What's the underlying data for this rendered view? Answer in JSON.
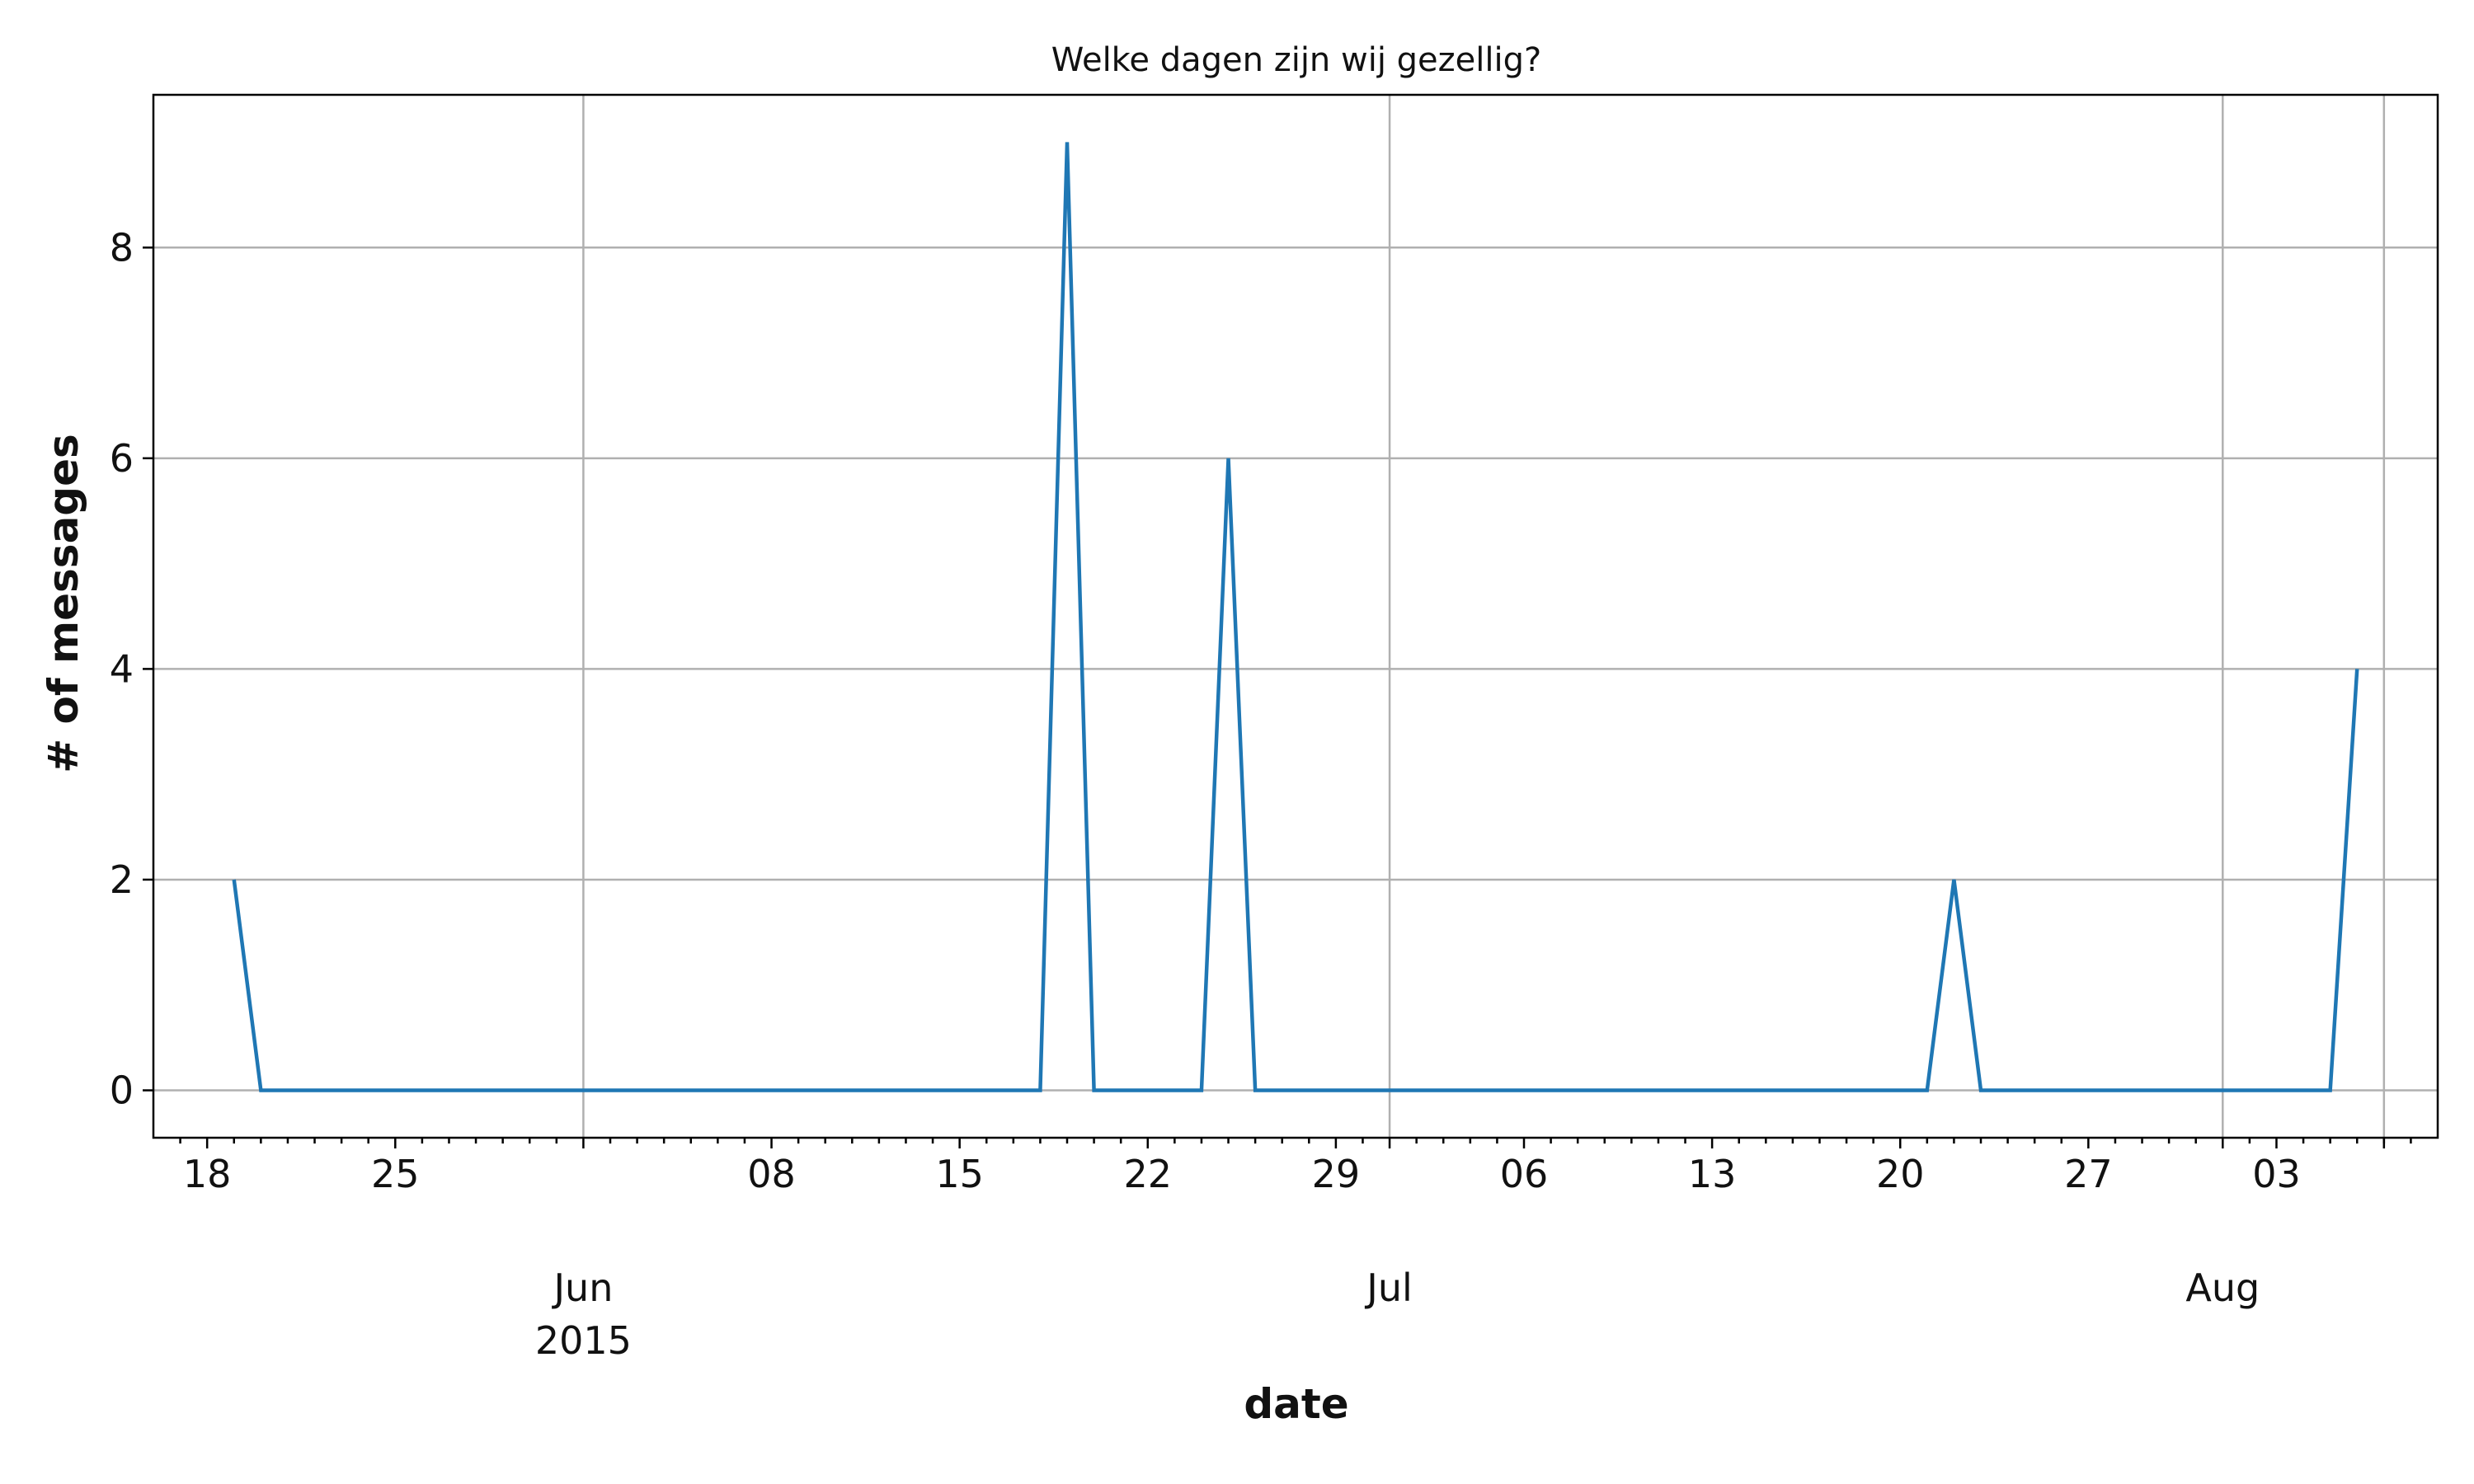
{
  "chart_data": {
    "type": "line",
    "title": "Welke dagen zijn wij gezellig?",
    "xlabel": "date",
    "ylabel": "# of messages",
    "x": [
      "2015-05-19",
      "2015-05-20",
      "2015-05-21",
      "2015-05-22",
      "2015-05-23",
      "2015-05-24",
      "2015-05-25",
      "2015-05-26",
      "2015-05-27",
      "2015-05-28",
      "2015-05-29",
      "2015-05-30",
      "2015-05-31",
      "2015-06-01",
      "2015-06-02",
      "2015-06-03",
      "2015-06-04",
      "2015-06-05",
      "2015-06-06",
      "2015-06-07",
      "2015-06-08",
      "2015-06-09",
      "2015-06-10",
      "2015-06-11",
      "2015-06-12",
      "2015-06-13",
      "2015-06-14",
      "2015-06-15",
      "2015-06-16",
      "2015-06-17",
      "2015-06-18",
      "2015-06-19",
      "2015-06-20",
      "2015-06-21",
      "2015-06-22",
      "2015-06-23",
      "2015-06-24",
      "2015-06-25",
      "2015-06-26",
      "2015-06-27",
      "2015-06-28",
      "2015-06-29",
      "2015-06-30",
      "2015-07-01",
      "2015-07-02",
      "2015-07-03",
      "2015-07-04",
      "2015-07-05",
      "2015-07-06",
      "2015-07-07",
      "2015-07-08",
      "2015-07-09",
      "2015-07-10",
      "2015-07-11",
      "2015-07-12",
      "2015-07-13",
      "2015-07-14",
      "2015-07-15",
      "2015-07-16",
      "2015-07-17",
      "2015-07-18",
      "2015-07-19",
      "2015-07-20",
      "2015-07-21",
      "2015-07-22",
      "2015-07-23",
      "2015-07-24",
      "2015-07-25",
      "2015-07-26",
      "2015-07-27",
      "2015-07-28",
      "2015-07-29",
      "2015-07-30",
      "2015-07-31",
      "2015-08-01",
      "2015-08-02",
      "2015-08-03",
      "2015-08-04",
      "2015-08-05",
      "2015-08-06"
    ],
    "series": [
      {
        "color": "#1f77b4",
        "values": [
          2,
          0,
          0,
          0,
          0,
          0,
          0,
          0,
          0,
          0,
          0,
          0,
          0,
          0,
          0,
          0,
          0,
          0,
          0,
          0,
          0,
          0,
          0,
          0,
          0,
          0,
          0,
          0,
          0,
          0,
          0,
          9,
          0,
          0,
          0,
          0,
          0,
          6,
          0,
          0,
          0,
          0,
          0,
          0,
          0,
          0,
          0,
          0,
          0,
          0,
          0,
          0,
          0,
          0,
          0,
          0,
          0,
          0,
          0,
          0,
          0,
          0,
          0,
          0,
          2,
          0,
          0,
          0,
          0,
          0,
          0,
          0,
          0,
          0,
          0,
          0,
          0,
          0,
          0,
          4
        ]
      }
    ],
    "xlim": [
      "2015-05-16",
      "2015-08-09"
    ],
    "ylim": [
      -0.45,
      9.45
    ],
    "yticks": [
      {
        "value": 0,
        "label": "0"
      },
      {
        "value": 2,
        "label": "2"
      },
      {
        "value": 4,
        "label": "4"
      },
      {
        "value": 6,
        "label": "6"
      },
      {
        "value": 8,
        "label": "8"
      }
    ],
    "xticks_major": [
      {
        "date": "2015-06-01",
        "label": "Jun",
        "sublabel": "2015"
      },
      {
        "date": "2015-07-01",
        "label": "Jul",
        "sublabel": ""
      },
      {
        "date": "2015-08-01",
        "label": "Aug",
        "sublabel": ""
      }
    ],
    "xticks_minor": [
      {
        "date": "2015-05-18",
        "label": "18"
      },
      {
        "date": "2015-05-25",
        "label": "25"
      },
      {
        "date": "2015-06-08",
        "label": "08"
      },
      {
        "date": "2015-06-15",
        "label": "15"
      },
      {
        "date": "2015-06-22",
        "label": "22"
      },
      {
        "date": "2015-06-29",
        "label": "29"
      },
      {
        "date": "2015-07-06",
        "label": "06"
      },
      {
        "date": "2015-07-13",
        "label": "13"
      },
      {
        "date": "2015-07-20",
        "label": "20"
      },
      {
        "date": "2015-07-27",
        "label": "27"
      },
      {
        "date": "2015-08-03",
        "label": "03"
      }
    ],
    "grid": true,
    "legend": "none"
  }
}
